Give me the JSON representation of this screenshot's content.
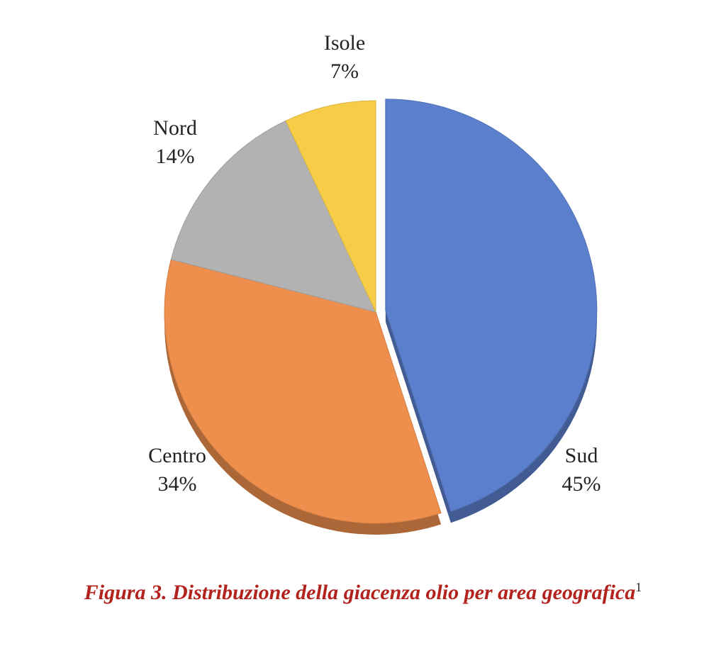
{
  "chart_data": {
    "type": "pie",
    "title": "",
    "categories": [
      "Sud",
      "Centro",
      "Nord",
      "Isole"
    ],
    "values": [
      45,
      34,
      14,
      7
    ],
    "labels": [
      "45%",
      "34%",
      "14%",
      "7%"
    ],
    "colors": [
      "#5b7fcc",
      "#ee8f4d",
      "#b2b2b2",
      "#f7cd47"
    ],
    "exploded": "Sud",
    "legend": "none"
  },
  "caption": {
    "text": "Figura 3. Distribuzione della giacenza olio per area geografica",
    "footnote": "1",
    "color": "#b1231c"
  }
}
